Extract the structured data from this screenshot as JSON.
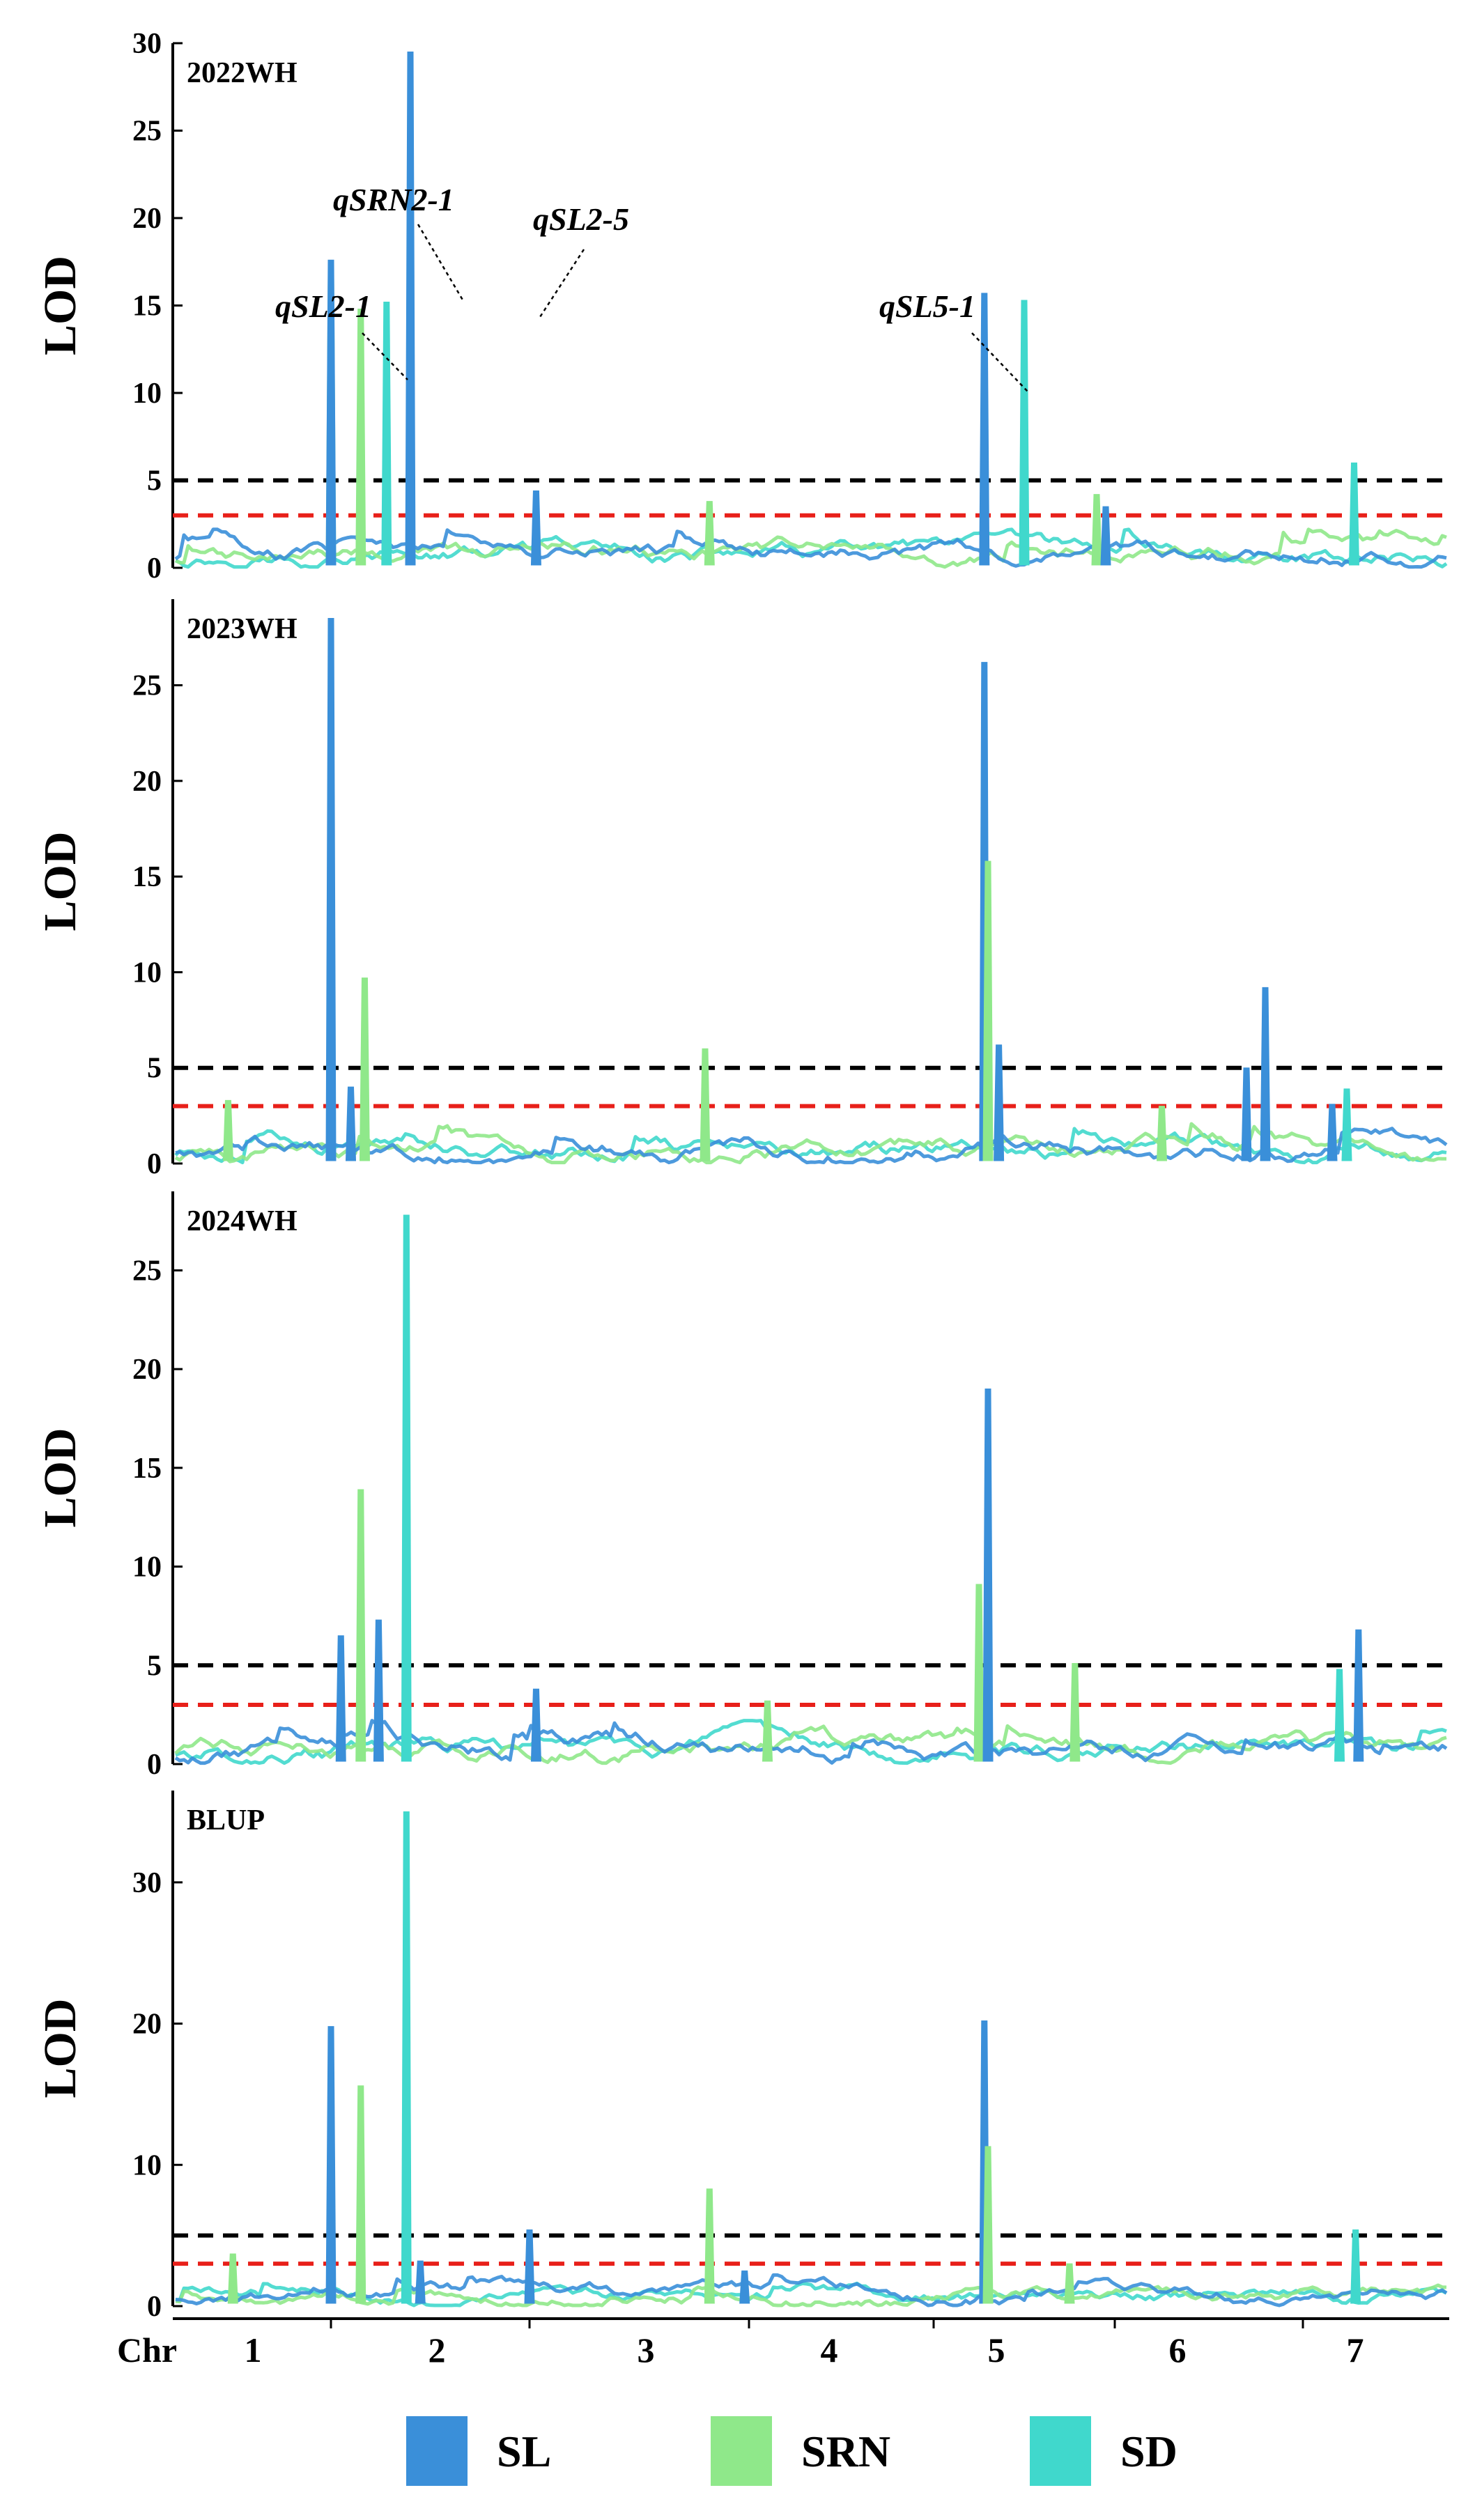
{
  "chart_data": {
    "type": "line",
    "ylabel": "LOD",
    "xlabel_prefix": "Chr",
    "chromosomes": [
      "1",
      "2",
      "3",
      "4",
      "5",
      "6",
      "7"
    ],
    "thresholds": [
      {
        "value": 5,
        "color": "#000000",
        "style": "dashed"
      },
      {
        "value": 3,
        "color": "#e8201a",
        "style": "dashed"
      }
    ],
    "series_colors": {
      "SL": "#3a8fd9",
      "SRN": "#8fe88a",
      "SD": "#40d8cc"
    },
    "legend": [
      {
        "key": "SL",
        "label": "SL",
        "color": "#3a8fd9"
      },
      {
        "key": "SRN",
        "label": "SRN",
        "color": "#8fe88a"
      },
      {
        "key": "SD",
        "label": "SD",
        "color": "#40d8cc"
      }
    ],
    "panels": [
      {
        "title": "2022WH",
        "ylim": [
          0,
          30
        ],
        "yticks": [
          0,
          5,
          10,
          15,
          20,
          25,
          30
        ],
        "peaks": [
          {
            "series": "SRN",
            "pos": 2.0,
            "lod": 16.6
          },
          {
            "series": "SL",
            "pos": 2.0,
            "lod": 17.6
          },
          {
            "series": "SRN",
            "pos": 2.15,
            "lod": 14.8
          },
          {
            "series": "SD",
            "pos": 2.28,
            "lod": 15.2
          },
          {
            "series": "SL",
            "pos": 2.4,
            "lod": 29.5
          },
          {
            "series": "SL",
            "pos": 3.03,
            "lod": 4.4
          },
          {
            "series": "SRN",
            "pos": 3.82,
            "lod": 3.8
          },
          {
            "series": "SL",
            "pos": 5.28,
            "lod": 15.7
          },
          {
            "series": "SD",
            "pos": 5.5,
            "lod": 15.3
          },
          {
            "series": "SRN",
            "pos": 5.9,
            "lod": 4.2
          },
          {
            "series": "SL",
            "pos": 5.95,
            "lod": 3.5
          },
          {
            "series": "SD",
            "pos": 7.35,
            "lod": 6.0
          }
        ],
        "annotations": [
          {
            "text": "qSL2-1"
          },
          {
            "text": "qSRN2-1"
          },
          {
            "text": "qSL2-5"
          },
          {
            "text": "qSL5-1"
          }
        ]
      },
      {
        "title": "2023WH",
        "ylim": [
          0,
          29.5
        ],
        "yticks": [
          0,
          5,
          10,
          15,
          20,
          25
        ],
        "peaks": [
          {
            "series": "SRN",
            "pos": 1.35,
            "lod": 3.3
          },
          {
            "series": "SL",
            "pos": 2.0,
            "lod": 28.5
          },
          {
            "series": "SL",
            "pos": 2.1,
            "lod": 4.0
          },
          {
            "series": "SRN",
            "pos": 2.17,
            "lod": 9.7
          },
          {
            "series": "SRN",
            "pos": 3.8,
            "lod": 6.0
          },
          {
            "series": "SL",
            "pos": 5.28,
            "lod": 26.2
          },
          {
            "series": "SRN",
            "pos": 5.3,
            "lod": 15.8
          },
          {
            "series": "SL",
            "pos": 5.36,
            "lod": 6.2
          },
          {
            "series": "SRN",
            "pos": 6.25,
            "lod": 3.0
          },
          {
            "series": "SL",
            "pos": 6.7,
            "lod": 5.0
          },
          {
            "series": "SL",
            "pos": 6.8,
            "lod": 9.2
          },
          {
            "series": "SL",
            "pos": 7.2,
            "lod": 3.1
          },
          {
            "series": "SD",
            "pos": 7.3,
            "lod": 3.9
          }
        ]
      },
      {
        "title": "2024WH",
        "ylim": [
          0,
          29
        ],
        "yticks": [
          0,
          5,
          10,
          15,
          20,
          25
        ],
        "peaks": [
          {
            "series": "SL",
            "pos": 2.05,
            "lod": 6.5
          },
          {
            "series": "SRN",
            "pos": 2.15,
            "lod": 13.9
          },
          {
            "series": "SL",
            "pos": 2.24,
            "lod": 7.3
          },
          {
            "series": "SD",
            "pos": 2.38,
            "lod": 27.8
          },
          {
            "series": "SL",
            "pos": 3.03,
            "lod": 3.8
          },
          {
            "series": "SRN",
            "pos": 4.1,
            "lod": 3.2
          },
          {
            "series": "SRN",
            "pos": 5.25,
            "lod": 9.1
          },
          {
            "series": "SL",
            "pos": 5.3,
            "lod": 19.0
          },
          {
            "series": "SRN",
            "pos": 5.78,
            "lod": 5.1
          },
          {
            "series": "SD",
            "pos": 7.25,
            "lod": 4.8
          },
          {
            "series": "SL",
            "pos": 7.38,
            "lod": 6.8
          }
        ]
      },
      {
        "title": "BLUP",
        "ylim": [
          0,
          36.5
        ],
        "yticks": [
          0,
          10,
          20,
          30
        ],
        "peaks": [
          {
            "series": "SRN",
            "pos": 1.38,
            "lod": 3.7
          },
          {
            "series": "SL",
            "pos": 2.0,
            "lod": 19.8
          },
          {
            "series": "SRN",
            "pos": 2.15,
            "lod": 15.6
          },
          {
            "series": "SD",
            "pos": 2.38,
            "lod": 35.0
          },
          {
            "series": "SL",
            "pos": 2.45,
            "lod": 3.2
          },
          {
            "series": "SL",
            "pos": 3.0,
            "lod": 5.4
          },
          {
            "series": "SRN",
            "pos": 3.82,
            "lod": 8.3
          },
          {
            "series": "SL",
            "pos": 3.98,
            "lod": 2.5
          },
          {
            "series": "SL",
            "pos": 5.28,
            "lod": 20.2
          },
          {
            "series": "SRN",
            "pos": 5.3,
            "lod": 11.3
          },
          {
            "series": "SRN",
            "pos": 5.75,
            "lod": 3.0
          },
          {
            "series": "SD",
            "pos": 7.36,
            "lod": 5.4
          }
        ]
      }
    ]
  }
}
